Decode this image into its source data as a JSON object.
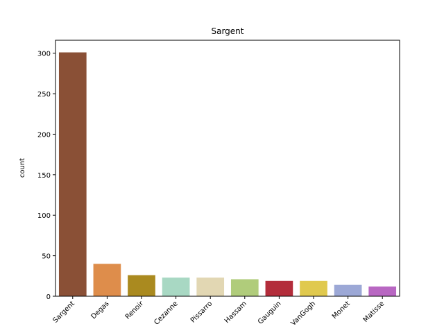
{
  "chart_data": {
    "type": "bar",
    "title": "Sargent",
    "xlabel": "",
    "ylabel": "count",
    "categories": [
      "Sargent",
      "Degas",
      "Renoir",
      "Cezanne",
      "Pissarro",
      "Hassam",
      "Gauguin",
      "VanGogh",
      "Monet",
      "Matisse"
    ],
    "values": [
      301,
      40,
      26,
      23,
      23,
      21,
      19,
      19,
      14,
      12
    ],
    "colors": [
      "#8a5036",
      "#de8d4b",
      "#aa8a1f",
      "#a8d8c3",
      "#e2d7b3",
      "#b0cc7b",
      "#b32d3b",
      "#e0c94e",
      "#9ca8d6",
      "#b867c2"
    ],
    "ylim": [
      0,
      316
    ],
    "yticks": [
      0,
      50,
      100,
      150,
      200,
      250,
      300
    ],
    "grid": false
  }
}
